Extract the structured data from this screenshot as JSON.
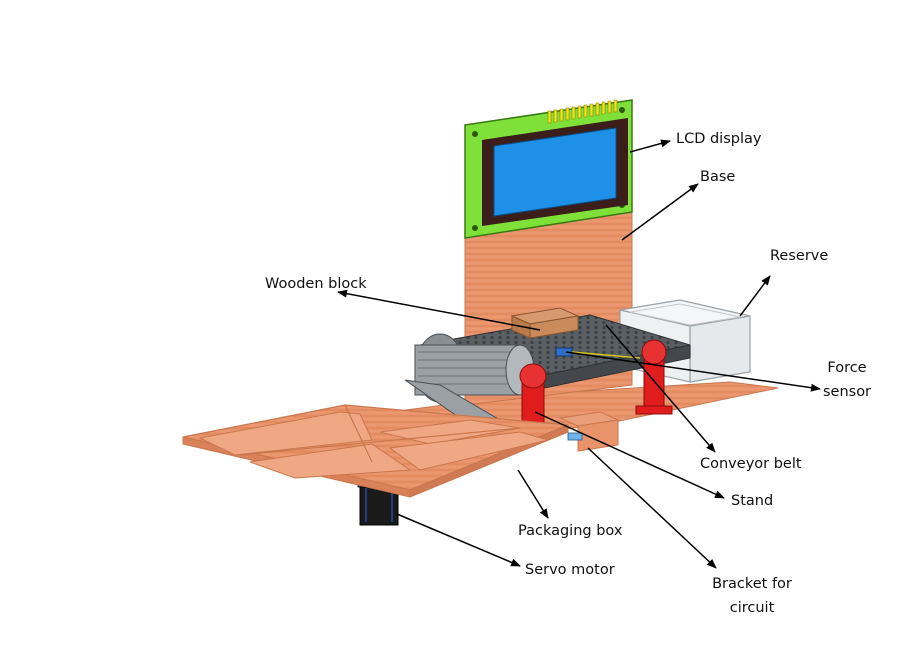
{
  "labels": {
    "lcd": "LCD display",
    "base": "Base",
    "reserve": "Reserve",
    "wooden_block": "Wooden block",
    "force_line1": "Force",
    "force_line2": "sensor",
    "conveyor": "Conveyor belt",
    "stand": "Stand",
    "packaging": "Packaging box",
    "servo": "Servo motor",
    "bracket_line1": "Bracket for",
    "bracket_line2": "circuit"
  },
  "colors": {
    "wood": "#e9936a",
    "wood_dark": "#c9774d",
    "lcd_pcb": "#7fe03a",
    "lcd_screen": "#1e90e8",
    "lcd_bezel": "#3b1e1a",
    "pins": "#f2e01a",
    "stand_red": "#e01c1c",
    "belt": "#5a5f64",
    "roller": "#8a8f94",
    "block": "#c98a5c",
    "glass": "#eef1f2",
    "motor": "#1a1a1a"
  }
}
